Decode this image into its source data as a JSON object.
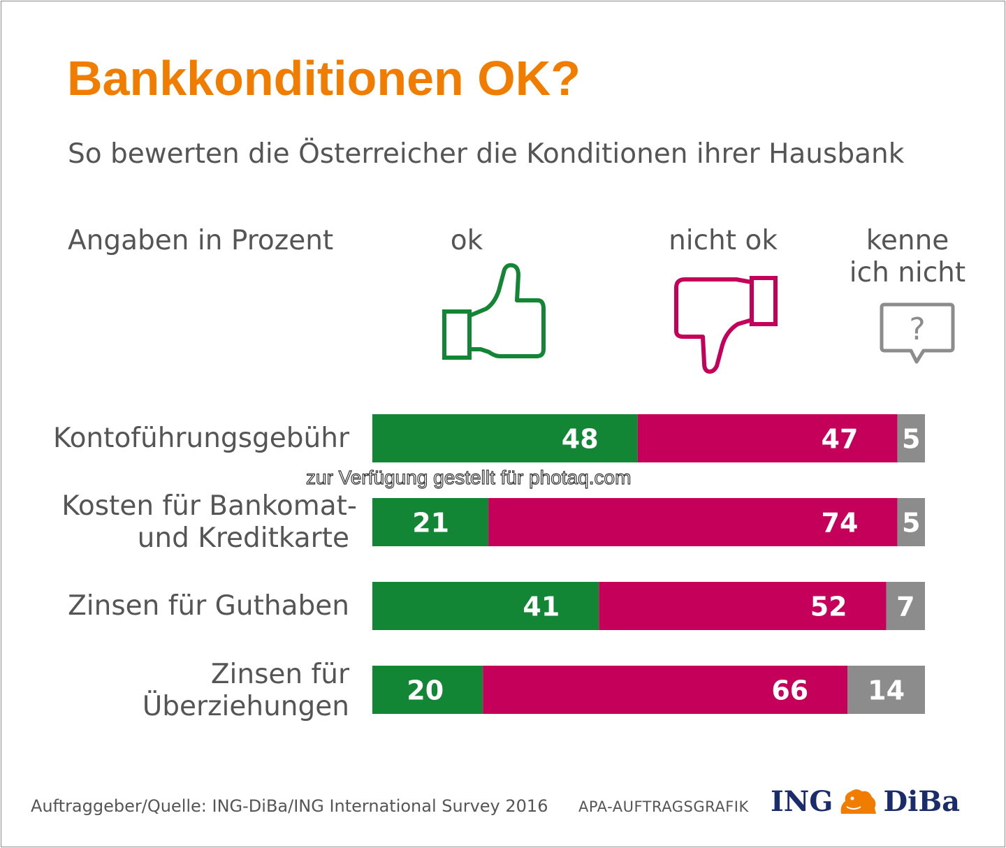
{
  "title": "Bankkonditionen OK?",
  "subtitle": "So bewerten die Österreicher die Konditionen ihrer Hausbank",
  "unit_label": "Angaben in Prozent",
  "columns": {
    "ok": "ok",
    "nicht_ok": "nicht ok",
    "kenne_line1": "kenne",
    "kenne_line2": "ich nicht"
  },
  "icons": {
    "ok": "thumbs-up-icon",
    "nicht_ok": "thumbs-down-icon",
    "kenne": "question-bubble-icon"
  },
  "colors": {
    "title": "#f07d00",
    "ok": "#138636",
    "nicht_ok": "#c4005a",
    "kenne": "#8c8c8c",
    "text": "#555555"
  },
  "rows": [
    {
      "label_lines": [
        "Kontoführungsgebühr"
      ]
    },
    {
      "label_lines": [
        "Kosten für Bankomat-",
        "und Kreditkarte"
      ]
    },
    {
      "label_lines": [
        "Zinsen für Guthaben"
      ]
    },
    {
      "label_lines": [
        "Zinsen für",
        "Überziehungen"
      ]
    }
  ],
  "chart_data": {
    "type": "bar",
    "orientation": "horizontal",
    "stacked": true,
    "title": "Bankkonditionen OK?",
    "subtitle": "So bewerten die Österreicher die Konditionen ihrer Hausbank",
    "ylabel": "Angaben in Prozent",
    "categories": [
      "Kontoführungsgebühr",
      "Kosten für Bankomat- und Kreditkarte",
      "Zinsen für Guthaben",
      "Zinsen für Überziehungen"
    ],
    "series": [
      {
        "name": "ok",
        "color": "#138636",
        "values": [
          48,
          21,
          41,
          20
        ]
      },
      {
        "name": "nicht ok",
        "color": "#c4005a",
        "values": [
          47,
          74,
          52,
          66
        ]
      },
      {
        "name": "kenne ich nicht",
        "color": "#8c8c8c",
        "values": [
          5,
          5,
          7,
          14
        ]
      }
    ],
    "xlim": [
      0,
      100
    ],
    "grid": false,
    "legend": "top (icons above bars)"
  },
  "watermark": "zur Verfügung gestellt für photaq.com",
  "footer": {
    "source": "Auftraggeber/Quelle: ING-DiBa/ING International Survey 2016",
    "apa": "APA-AUFTRAGSGRAFIK",
    "logo_left": "ING",
    "logo_right": "DiBa"
  }
}
